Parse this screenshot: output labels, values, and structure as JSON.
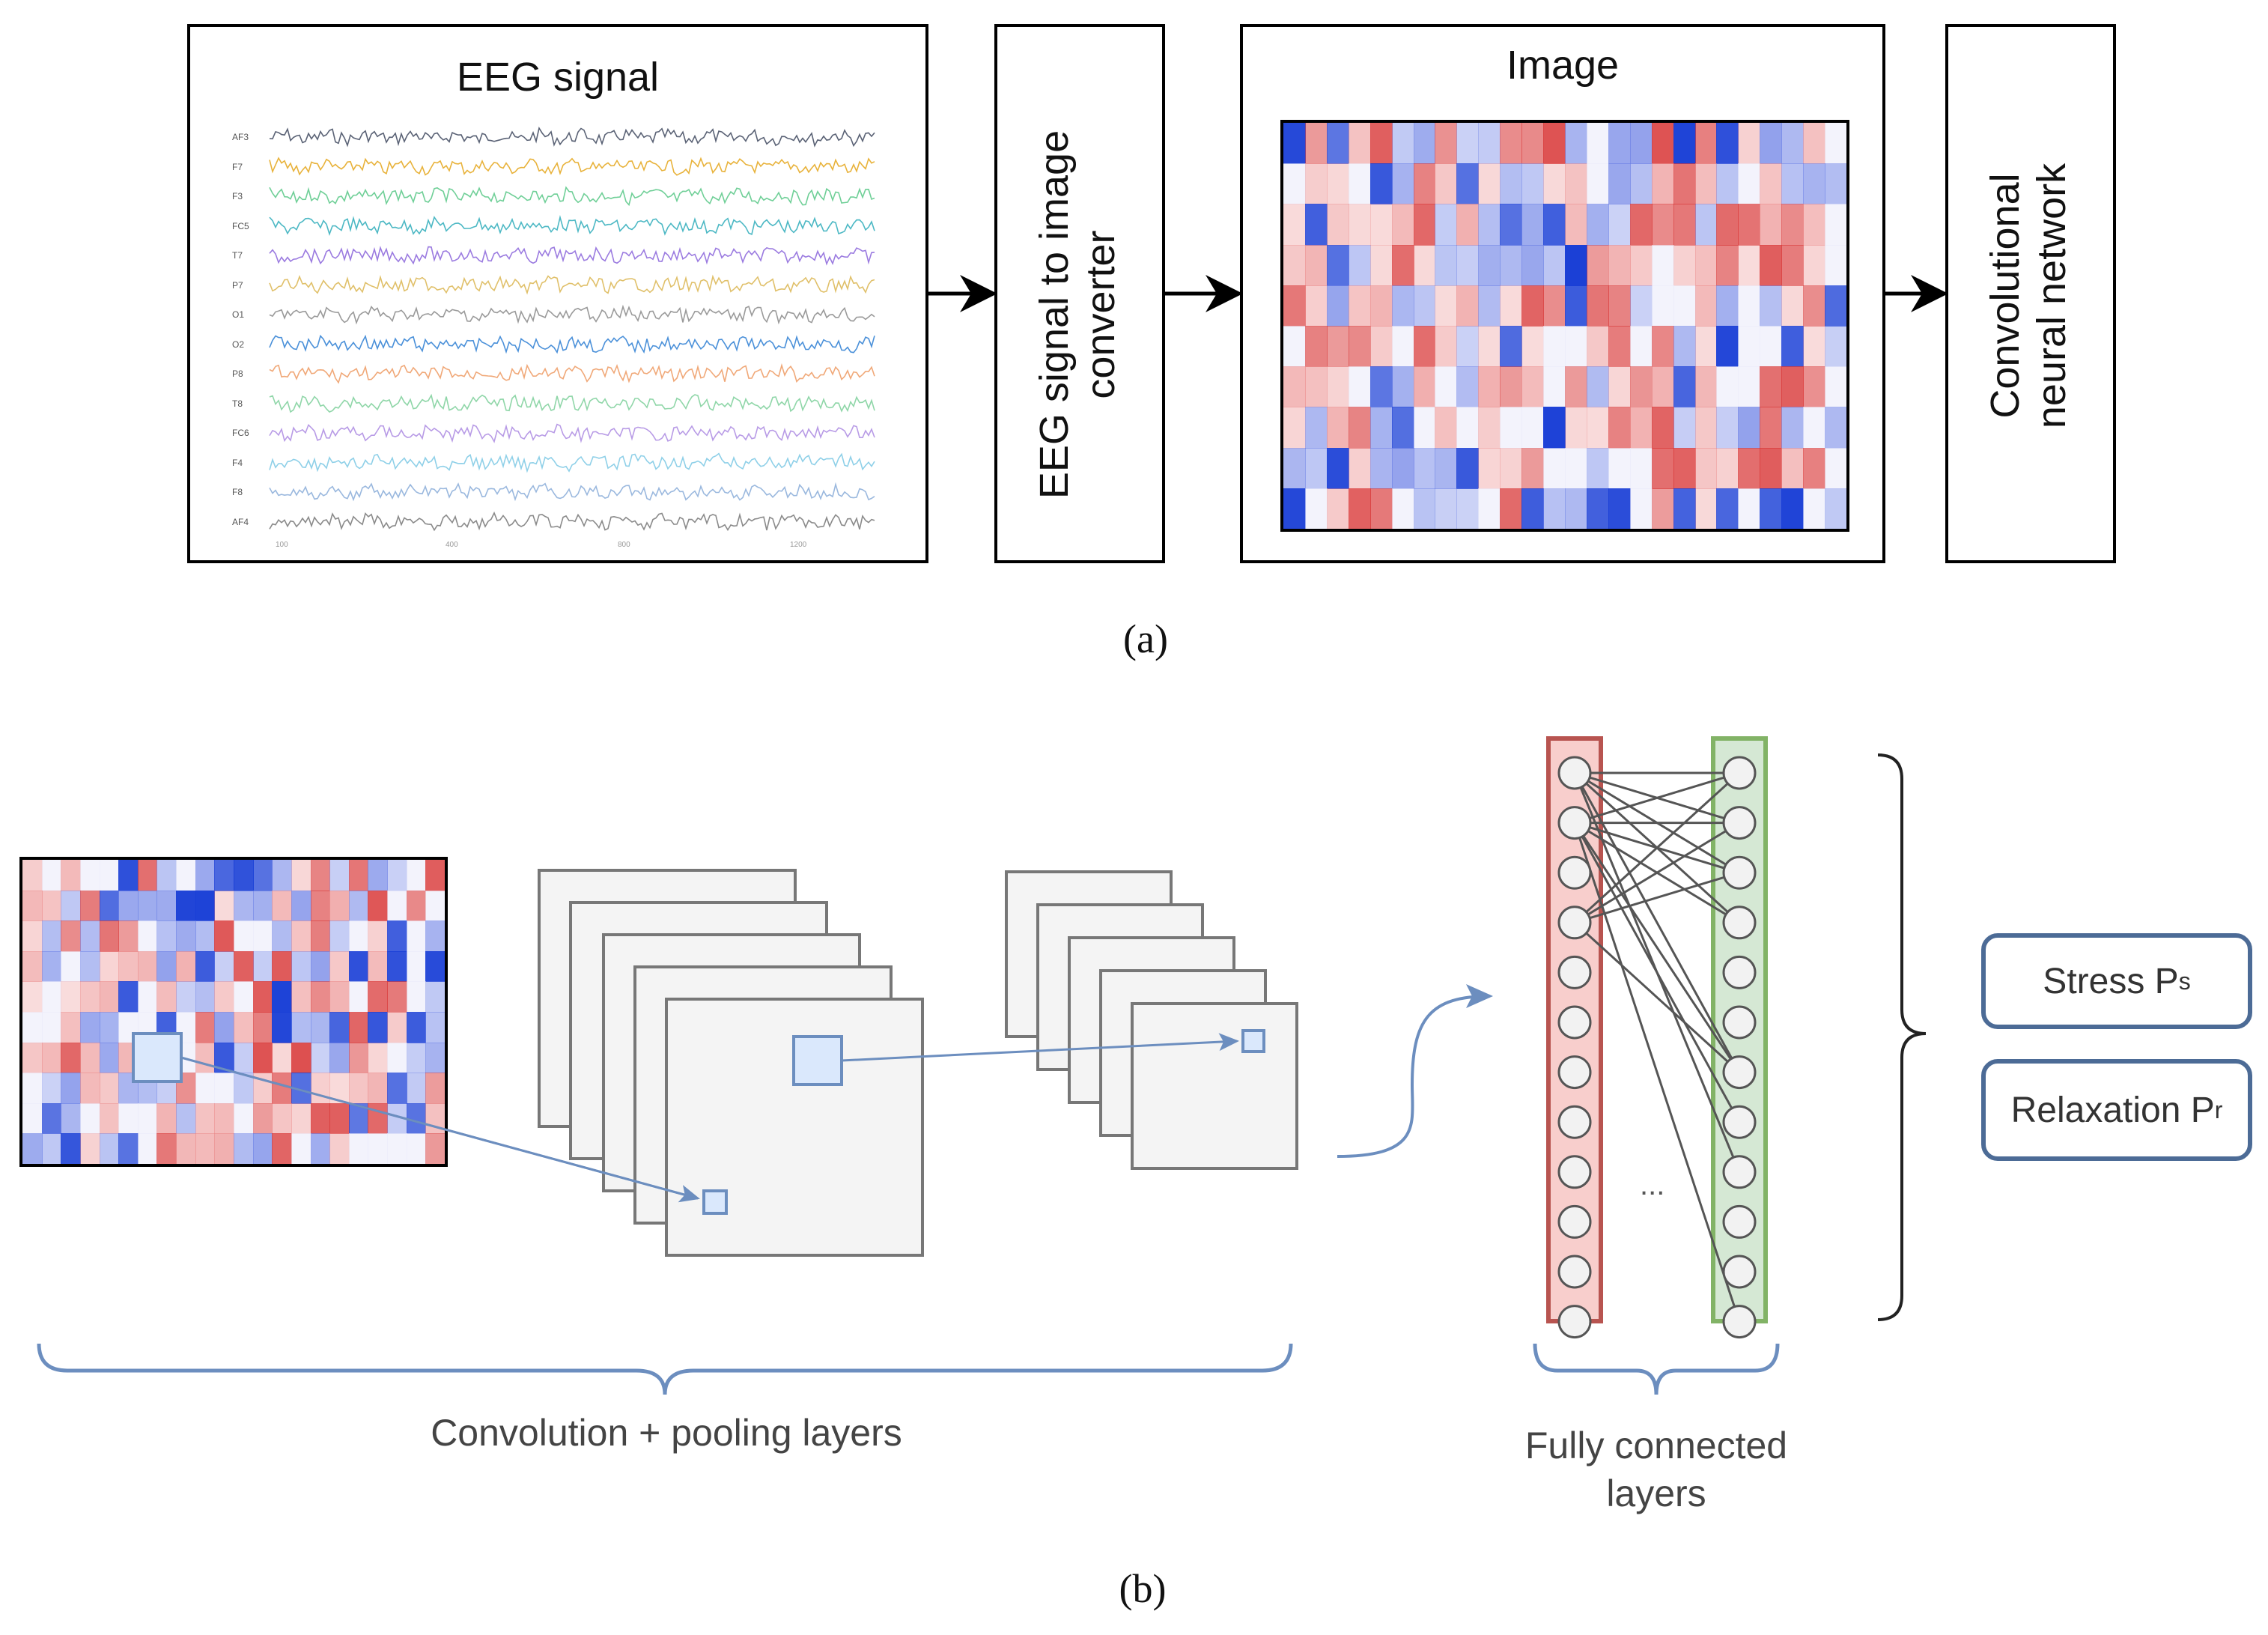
{
  "panel_a": {
    "eeg_title": "EEG  signal",
    "channels": [
      "AF3",
      "F7",
      "F3",
      "FC5",
      "T7",
      "P7",
      "O1",
      "O2",
      "P8",
      "T8",
      "FC6",
      "F4",
      "F8",
      "AF4"
    ],
    "channel_colors": [
      "#5a6275",
      "#e8b23a",
      "#6fcf97",
      "#4cb8c4",
      "#9b7be0",
      "#e0c06a",
      "#9a9a9a",
      "#4a90d9",
      "#f0a878",
      "#8fd6a8",
      "#b89be6",
      "#8fd0e8",
      "#9ab8de",
      "#8a8a8a"
    ],
    "ticks": [
      "100",
      "400",
      "800",
      "1200"
    ],
    "converter_label_line1": "EEG signal to image",
    "converter_label_line2": "converter",
    "image_title": "Image",
    "cnn_label_line1": "Convolutional",
    "cnn_label_line2": "neural network",
    "caption": "(a)"
  },
  "panel_b": {
    "conv_label": "Convolution + pooling  layers",
    "fc_label_line1": "Fully connected",
    "fc_label_line2": "layers",
    "ellipsis": "...",
    "stress_label": "Stress P",
    "stress_sub": "s",
    "relax_label": "Relaxation P",
    "relax_sub": "r",
    "caption": "(b)"
  },
  "colors": {
    "red_layer_fill": "#f8cecc",
    "red_layer_border": "#b85450",
    "green_layer_fill": "#d5e8d4",
    "green_layer_border": "#82b366",
    "accent_blue": "#6c8ebf",
    "heat_blue": "#1a3fd6",
    "heat_red": "#d93a3a"
  }
}
